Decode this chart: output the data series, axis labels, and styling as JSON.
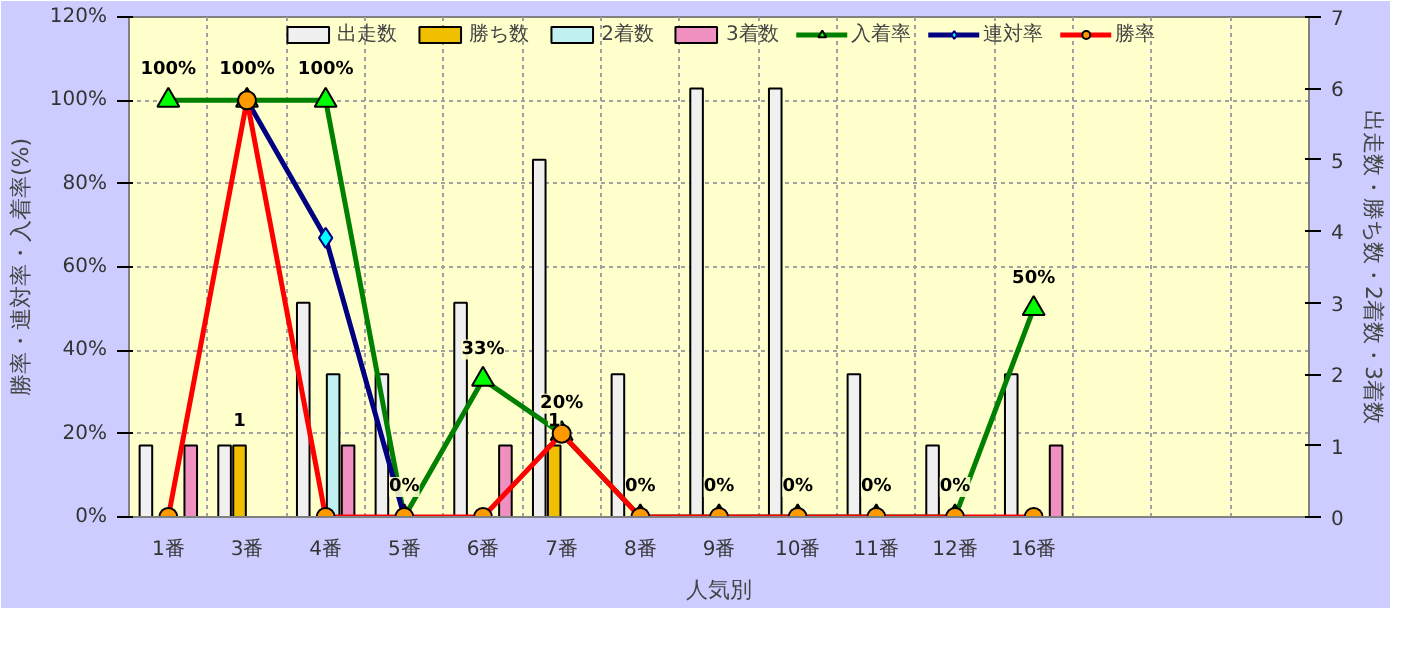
{
  "chart_data": {
    "type": "bar",
    "xlabel": "人気別",
    "ylabel": "勝率・連対率・入着率(%)",
    "y2label": "出走数・勝ち数・2着数・3着数",
    "categories": [
      "1番",
      "3番",
      "4番",
      "5番",
      "6番",
      "7番",
      "8番",
      "9番",
      "10番",
      "11番",
      "12番",
      "16番",
      null,
      null,
      null
    ],
    "series": [
      {
        "name": "出走数",
        "axis": "y2",
        "color": "#f0f0f0",
        "values": [
          1,
          1,
          3,
          2,
          3,
          5,
          2,
          6,
          6,
          2,
          1,
          2,
          null,
          null,
          null
        ]
      },
      {
        "name": "勝ち数",
        "axis": "y2",
        "color": "#f0c000",
        "values": [
          null,
          1,
          null,
          null,
          null,
          1,
          null,
          null,
          null,
          null,
          null,
          null,
          null,
          null,
          null
        ],
        "value_labels": [
          null,
          "1",
          null,
          null,
          null,
          "1",
          null,
          null,
          null,
          null,
          null,
          null,
          null,
          null,
          null
        ]
      },
      {
        "name": "2着数",
        "axis": "y2",
        "color": "#c0f0f0",
        "values": [
          null,
          null,
          2,
          null,
          null,
          null,
          null,
          null,
          null,
          null,
          null,
          null,
          null,
          null,
          null
        ]
      },
      {
        "name": "3着数",
        "axis": "y2",
        "color": "#f090c0",
        "values": [
          1,
          null,
          1,
          null,
          1,
          null,
          null,
          null,
          null,
          null,
          null,
          1,
          null,
          null,
          null
        ]
      },
      {
        "name": "入着率",
        "type": "line",
        "color": "#008000",
        "marker": "triangle",
        "values": [
          100,
          100,
          100,
          0,
          33,
          20,
          0,
          0,
          0,
          0,
          0,
          50,
          null,
          null,
          null
        ],
        "value_labels": [
          "100%",
          "100%",
          "100%",
          "0%",
          "33%",
          "20%",
          "0%",
          "0%",
          "0%",
          "0%",
          "0%",
          "50%",
          null,
          null,
          null
        ]
      },
      {
        "name": "連対率",
        "type": "line",
        "color": "#000080",
        "marker": "diamond",
        "values": [
          null,
          100,
          67,
          0,
          null,
          null,
          null,
          null,
          null,
          null,
          null,
          null,
          null,
          null,
          null
        ]
      },
      {
        "name": "勝率",
        "type": "line",
        "color": "#ff0000",
        "marker": "circle",
        "values": [
          0,
          100,
          0,
          0,
          0,
          20,
          0,
          0,
          0,
          0,
          0,
          0,
          null,
          null,
          null
        ]
      }
    ],
    "ylim": [
      0,
      120
    ],
    "yticks": [
      {
        "value": 0,
        "label": "0%"
      },
      {
        "value": 20,
        "label": "20%"
      },
      {
        "value": 40,
        "label": "40%"
      },
      {
        "value": 60,
        "label": "60%"
      },
      {
        "value": 80,
        "label": "80%"
      },
      {
        "value": 100,
        "label": "100%"
      },
      {
        "value": 120,
        "label": "120%"
      }
    ],
    "y2lim": [
      0,
      7
    ],
    "y2ticks": [
      0,
      1,
      2,
      3,
      4,
      5,
      6,
      7
    ],
    "grid": true,
    "legend": "top"
  }
}
